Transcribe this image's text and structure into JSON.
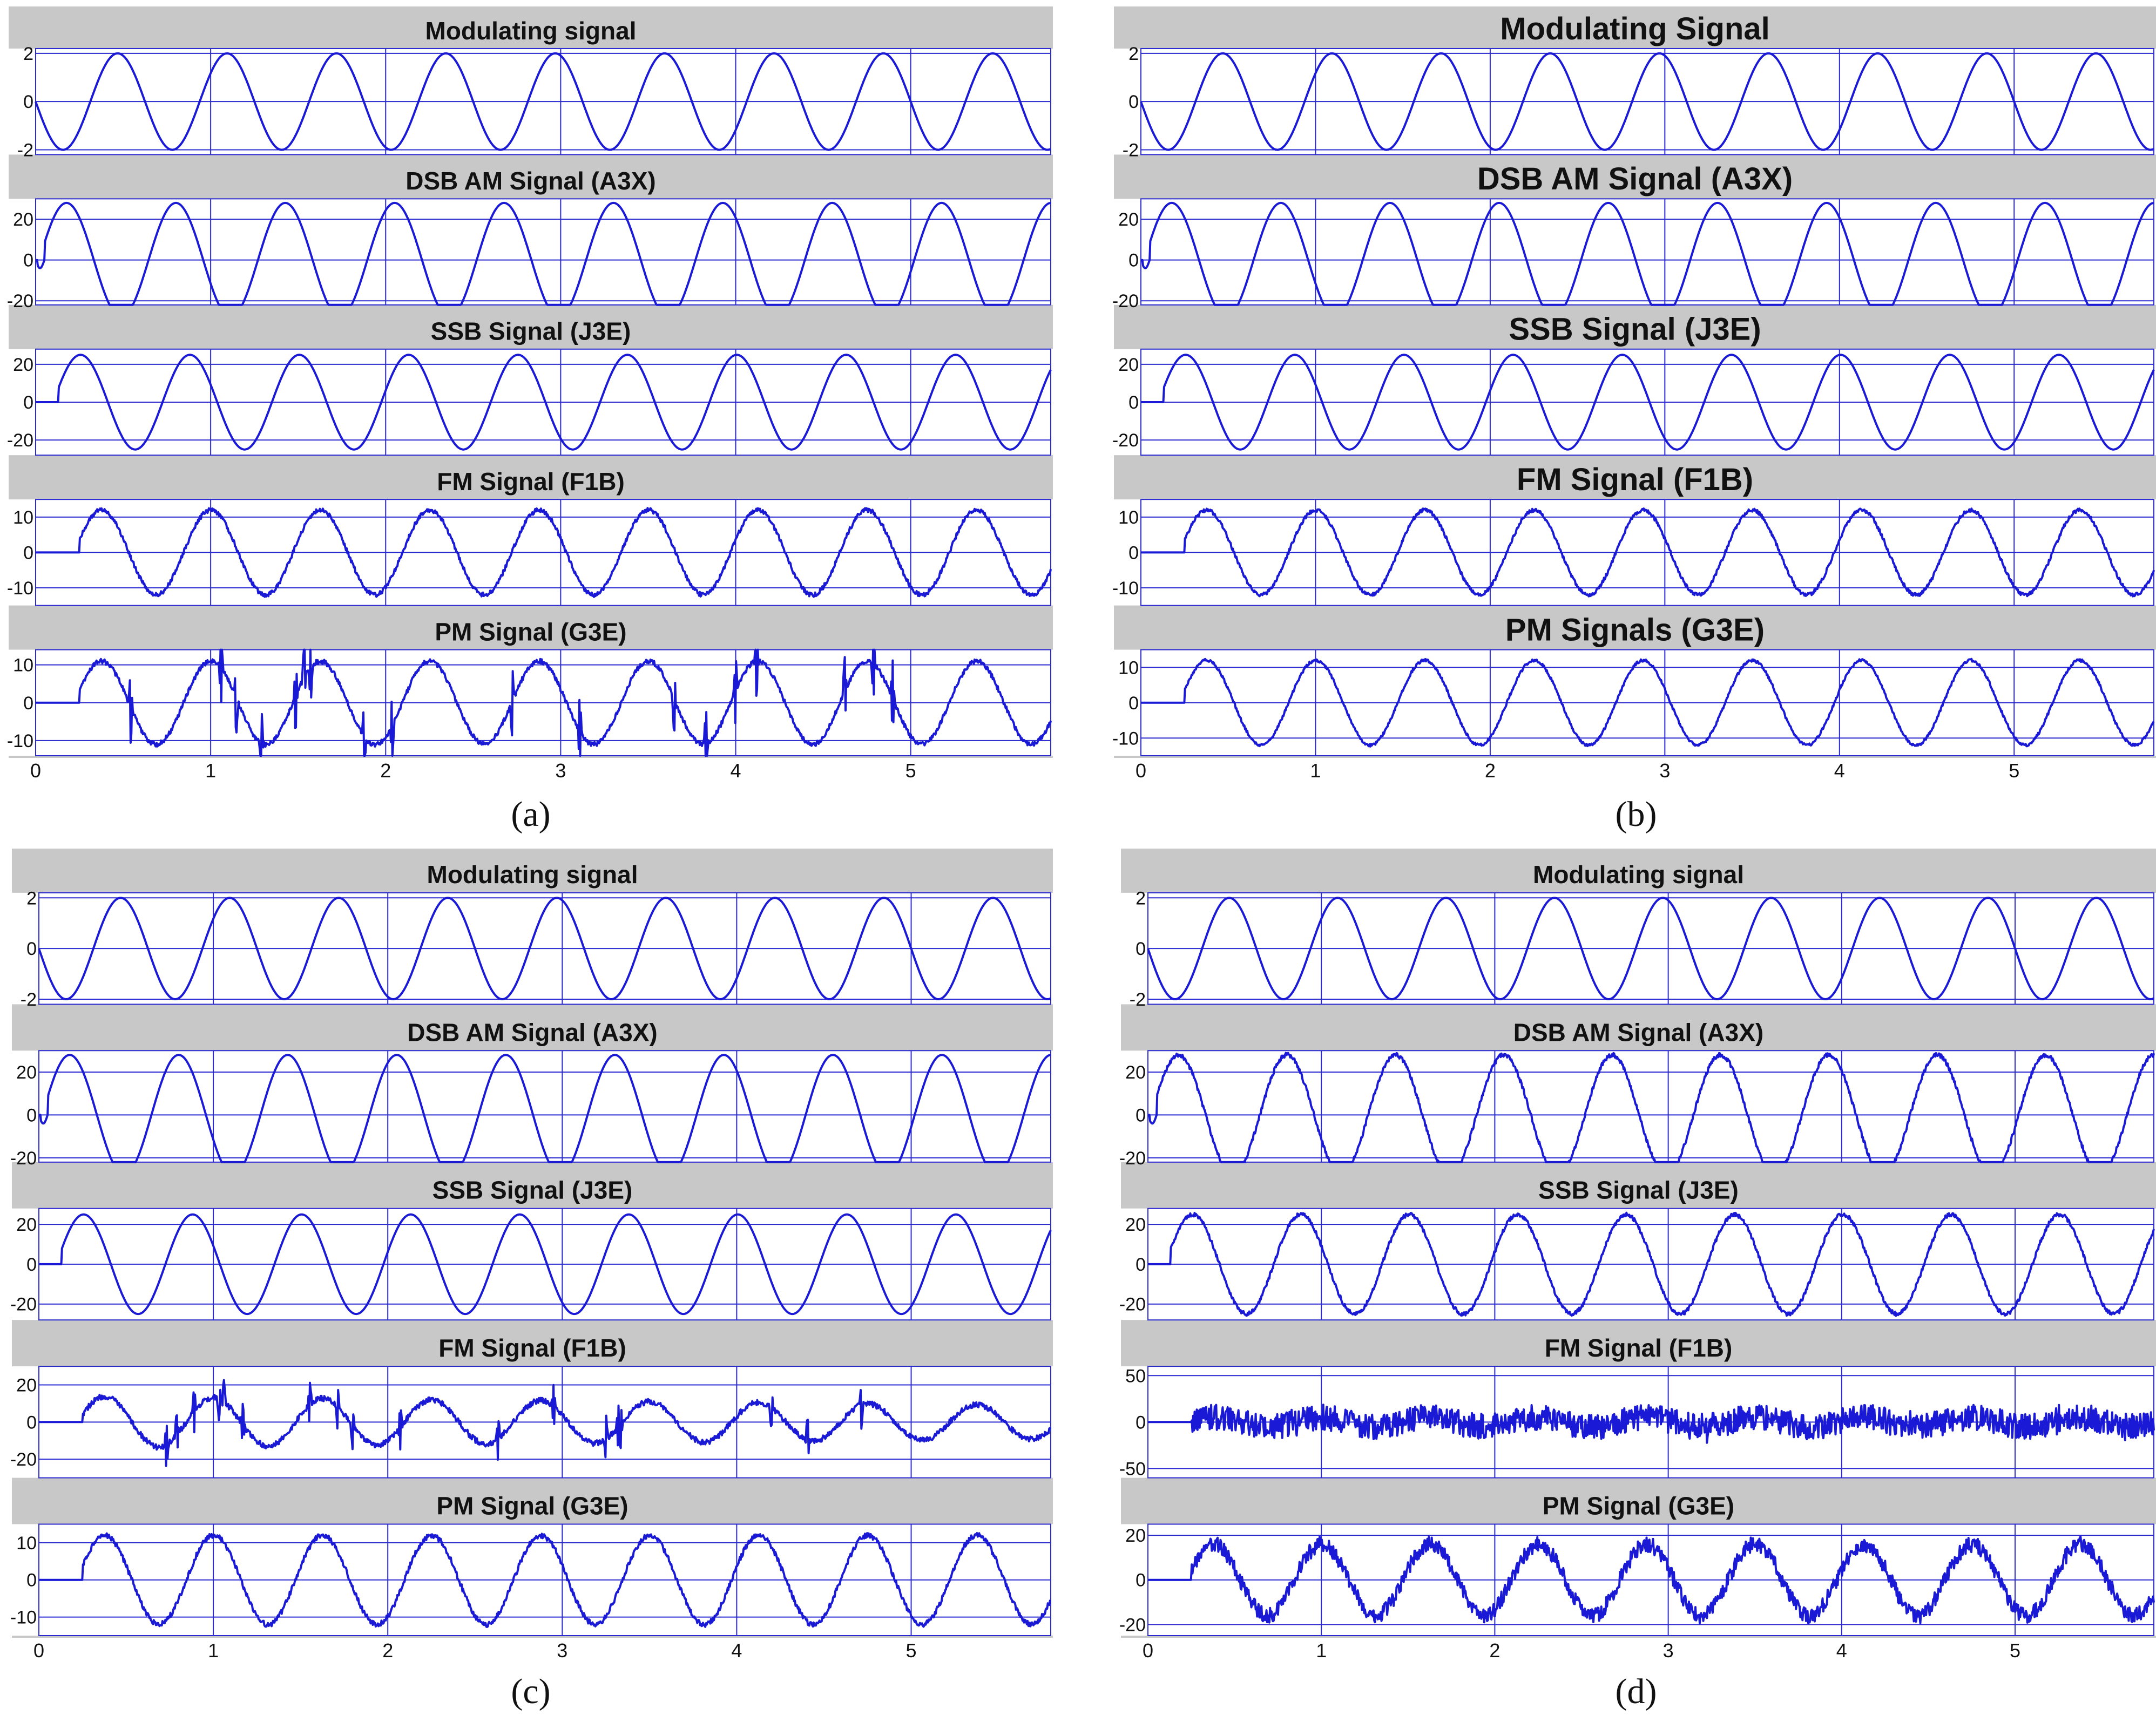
{
  "figure": {
    "panels": [
      {
        "label": "(a)",
        "titles": [
          "Modulating signal",
          "DSB AM Signal (A3X)",
          "SSB Signal (J3E)",
          "FM Signal (F1B)",
          "PM Signal (G3E)"
        ],
        "ytick_labels": [
          [
            "2",
            "0",
            "-2"
          ],
          [
            "20",
            "0",
            "-20"
          ],
          [
            "20",
            "0",
            "-20"
          ],
          [
            "10",
            "0",
            "-10"
          ],
          [
            "10",
            "0",
            "-10"
          ]
        ],
        "xtick_labels": [
          "0",
          "1",
          "2",
          "3",
          "4",
          "5"
        ]
      },
      {
        "label": "(b)",
        "titles": [
          "Modulating Signal",
          "DSB AM Signal (A3X)",
          "SSB Signal (J3E)",
          "FM Signal (F1B)",
          "PM Signals (G3E)"
        ],
        "ytick_labels": [
          [
            "2",
            "0",
            "-2"
          ],
          [
            "20",
            "0",
            "-20"
          ],
          [
            "20",
            "0",
            "-20"
          ],
          [
            "10",
            "0",
            "-10"
          ],
          [
            "10",
            "0",
            "-10"
          ]
        ],
        "xtick_labels": [
          "0",
          "1",
          "2",
          "3",
          "4",
          "5"
        ]
      },
      {
        "label": "(c)",
        "titles": [
          "Modulating signal",
          "DSB AM Signal (A3X)",
          "SSB Signal (J3E)",
          "FM Signal (F1B)",
          "PM Signal (G3E)"
        ],
        "ytick_labels": [
          [
            "2",
            "0",
            "-2"
          ],
          [
            "20",
            "0",
            "-20"
          ],
          [
            "20",
            "0",
            "-20"
          ],
          [
            "20",
            "0",
            "-20"
          ],
          [
            "10",
            "0",
            "-10"
          ]
        ],
        "xtick_labels": [
          "0",
          "1",
          "2",
          "3",
          "4",
          "5"
        ]
      },
      {
        "label": "(d)",
        "titles": [
          "Modulating signal",
          "DSB AM Signal (A3X)",
          "SSB Signal (J3E)",
          "FM Signal (F1B)",
          "PM Signal (G3E)"
        ],
        "ytick_labels": [
          [
            "2",
            "0",
            "-2"
          ],
          [
            "20",
            "0",
            "-20"
          ],
          [
            "20",
            "0",
            "-20"
          ],
          [
            "50",
            "0",
            "-50"
          ],
          [
            "20",
            "0",
            "-20"
          ]
        ],
        "xtick_labels": [
          "0",
          "1",
          "2",
          "3",
          "4",
          "5"
        ]
      }
    ]
  },
  "chart_data": [
    {
      "type": "line",
      "panel": "(a)",
      "x_range": [
        0,
        5.8
      ],
      "signal_frequency_hz": 1.6,
      "series": [
        {
          "title": "Modulating signal",
          "amplitude": 2,
          "ylim": [
            -2.2,
            2.2
          ],
          "yticks": [
            2,
            0,
            -2
          ],
          "start_time": 0,
          "noise": 0,
          "spikes": false
        },
        {
          "title": "DSB AM Signal (A3X)",
          "amplitude": 28,
          "ylim": [
            -22,
            30
          ],
          "yticks": [
            20,
            0,
            -20
          ],
          "start_time": 0.05,
          "noise": 0,
          "spikes": false
        },
        {
          "title": "SSB Signal (J3E)",
          "amplitude": 25,
          "ylim": [
            -28,
            28
          ],
          "yticks": [
            20,
            0,
            -20
          ],
          "start_time": 0.13,
          "noise": 0,
          "spikes": false
        },
        {
          "title": "FM Signal (F1B)",
          "amplitude": 12,
          "ylim": [
            -15,
            15
          ],
          "yticks": [
            10,
            0,
            -10
          ],
          "start_time": 0.25,
          "noise": 0.6,
          "spikes": false
        },
        {
          "title": "PM Signal (G3E)",
          "amplitude": 11,
          "ylim": [
            -14,
            14
          ],
          "yticks": [
            10,
            0,
            -10
          ],
          "start_time": 0.25,
          "noise": 0.6,
          "spikes": true
        }
      ]
    },
    {
      "type": "line",
      "panel": "(b)",
      "x_range": [
        0,
        5.8
      ],
      "signal_frequency_hz": 1.6,
      "series": [
        {
          "title": "Modulating Signal",
          "amplitude": 2,
          "ylim": [
            -2.2,
            2.2
          ],
          "yticks": [
            2,
            0,
            -2
          ],
          "start_time": 0,
          "noise": 0,
          "spikes": false
        },
        {
          "title": "DSB AM Signal (A3X)",
          "amplitude": 28,
          "ylim": [
            -22,
            30
          ],
          "yticks": [
            20,
            0,
            -20
          ],
          "start_time": 0.05,
          "noise": 0,
          "spikes": false
        },
        {
          "title": "SSB Signal (J3E)",
          "amplitude": 25,
          "ylim": [
            -28,
            28
          ],
          "yticks": [
            20,
            0,
            -20
          ],
          "start_time": 0.13,
          "noise": 0,
          "spikes": false
        },
        {
          "title": "FM Signal (F1B)",
          "amplitude": 12,
          "ylim": [
            -15,
            15
          ],
          "yticks": [
            10,
            0,
            -10
          ],
          "start_time": 0.25,
          "noise": 0.5,
          "spikes": false
        },
        {
          "title": "PM Signals (G3E)",
          "amplitude": 12,
          "ylim": [
            -15,
            15
          ],
          "yticks": [
            10,
            0,
            -10
          ],
          "start_time": 0.25,
          "noise": 0.4,
          "spikes": false
        }
      ]
    },
    {
      "type": "line",
      "panel": "(c)",
      "x_range": [
        0,
        5.8
      ],
      "signal_frequency_hz": 1.6,
      "series": [
        {
          "title": "Modulating signal",
          "amplitude": 2,
          "ylim": [
            -2.2,
            2.2
          ],
          "yticks": [
            2,
            0,
            -2
          ],
          "start_time": 0,
          "noise": 0,
          "spikes": false
        },
        {
          "title": "DSB AM Signal (A3X)",
          "amplitude": 28,
          "ylim": [
            -22,
            30
          ],
          "yticks": [
            20,
            0,
            -20
          ],
          "start_time": 0.05,
          "noise": 0,
          "spikes": false
        },
        {
          "title": "SSB Signal (J3E)",
          "amplitude": 25,
          "ylim": [
            -28,
            28
          ],
          "yticks": [
            20,
            0,
            -20
          ],
          "start_time": 0.13,
          "noise": 0,
          "spikes": false
        },
        {
          "title": "FM Signal (F1B)",
          "amplitude": 14,
          "ylim": [
            -30,
            30
          ],
          "yticks": [
            20,
            0,
            -20
          ],
          "start_time": 0.25,
          "noise": 1.5,
          "spikes": true,
          "amplitude_decay": 0.06
        },
        {
          "title": "PM Signal (G3E)",
          "amplitude": 12,
          "ylim": [
            -15,
            15
          ],
          "yticks": [
            10,
            0,
            -10
          ],
          "start_time": 0.25,
          "noise": 0.7,
          "spikes": false
        }
      ]
    },
    {
      "type": "line",
      "panel": "(d)",
      "x_range": [
        0,
        5.8
      ],
      "signal_frequency_hz": 1.6,
      "series": [
        {
          "title": "Modulating signal",
          "amplitude": 2,
          "ylim": [
            -2.2,
            2.2
          ],
          "yticks": [
            2,
            0,
            -2
          ],
          "start_time": 0,
          "noise": 0,
          "spikes": false
        },
        {
          "title": "DSB AM Signal (A3X)",
          "amplitude": 28,
          "ylim": [
            -22,
            30
          ],
          "yticks": [
            20,
            0,
            -20
          ],
          "start_time": 0.05,
          "noise": 1.0,
          "spikes": false
        },
        {
          "title": "SSB Signal (J3E)",
          "amplitude": 25,
          "ylim": [
            -28,
            28
          ],
          "yticks": [
            20,
            0,
            -20
          ],
          "start_time": 0.13,
          "noise": 1.0,
          "spikes": false
        },
        {
          "title": "FM Signal (F1B)",
          "amplitude": 5,
          "ylim": [
            -60,
            60
          ],
          "yticks": [
            50,
            0,
            -50
          ],
          "start_time": 0.25,
          "noise": 14,
          "spikes": true
        },
        {
          "title": "PM Signal (G3E)",
          "amplitude": 16,
          "ylim": [
            -25,
            25
          ],
          "yticks": [
            20,
            0,
            -20
          ],
          "start_time": 0.25,
          "noise": 3.5,
          "spikes": false
        }
      ]
    }
  ],
  "colors": {
    "signal": "#1a1ad6",
    "grid": "#2a2ad0",
    "title_band": "#c8c8c8",
    "panel_background": "#ffffff",
    "text": "#111111"
  }
}
